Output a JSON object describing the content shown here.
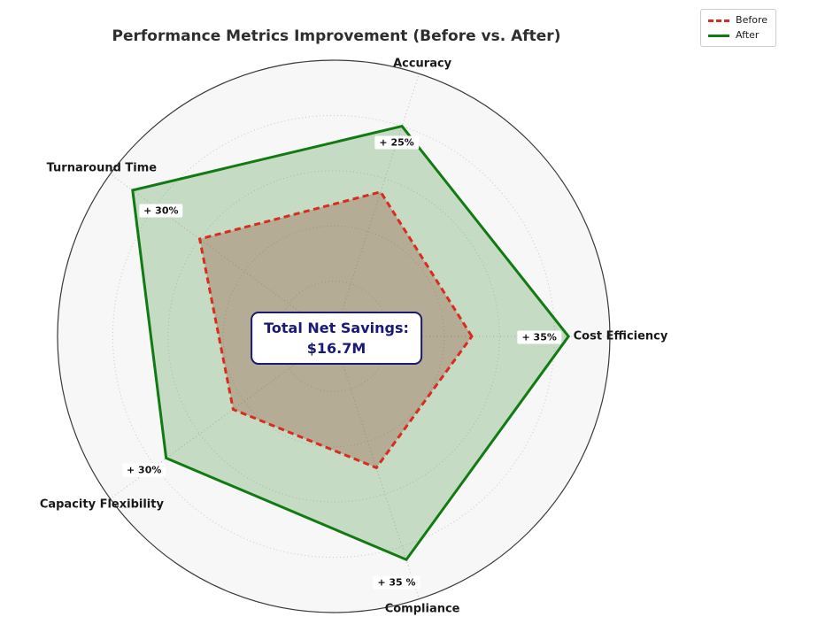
{
  "title": "Performance Metrics Improvement (Before vs. After)",
  "legend": {
    "position": "top-right",
    "entries": [
      {
        "label": "Before",
        "color": "#d92b1e",
        "line_style": "dashed"
      },
      {
        "label": "After",
        "color": "#127a12",
        "line_style": "solid"
      }
    ]
  },
  "center_label": {
    "line1": "Total Net Savings:",
    "line2": "$16.7M",
    "text_color": "#191978",
    "border_color": "#1a1a70"
  },
  "colors": {
    "before_line": "#d92b1e",
    "before_fill": "rgba(137,52,32,0.28)",
    "after_line": "#127a12",
    "after_fill": "rgba(84,157,77,0.30)",
    "plot_background": "#f7f7f7",
    "outer_ring": "#3a3a3a",
    "grid": "#c9c9c9"
  },
  "chart_data": {
    "type": "radar",
    "categories": [
      "Cost Efficiency",
      "Accuracy",
      "Turnaround Time",
      "Capacity Flexibility",
      "Compliance"
    ],
    "series": [
      {
        "name": "Before",
        "values": [
          50,
          55,
          60,
          45,
          50
        ],
        "color": "#d92b1e",
        "line_style": "dashed",
        "fill": "rgba(137,52,32,0.28)"
      },
      {
        "name": "After",
        "values": [
          85,
          80,
          90,
          75,
          85
        ],
        "color": "#127a12",
        "line_style": "solid",
        "fill": "rgba(84,157,77,0.30)"
      }
    ],
    "annotations": [
      {
        "category": "Cost Efficiency",
        "text": "+ 35%"
      },
      {
        "category": "Accuracy",
        "text": "+ 25%"
      },
      {
        "category": "Turnaround Time",
        "text": "+ 30%"
      },
      {
        "category": "Capacity Flexibility",
        "text": "+ 30%"
      },
      {
        "category": "Compliance",
        "text": "+ 35 %"
      }
    ],
    "scale": {
      "min": 0,
      "max": 100,
      "rings": [
        20,
        40,
        60,
        80
      ],
      "tick_labels_shown": false
    },
    "start_angle_deg": 0,
    "direction": "counterclockwise",
    "title": "Performance Metrics Improvement (Before vs. After)",
    "legend_entries": [
      "Before",
      "After"
    ]
  }
}
